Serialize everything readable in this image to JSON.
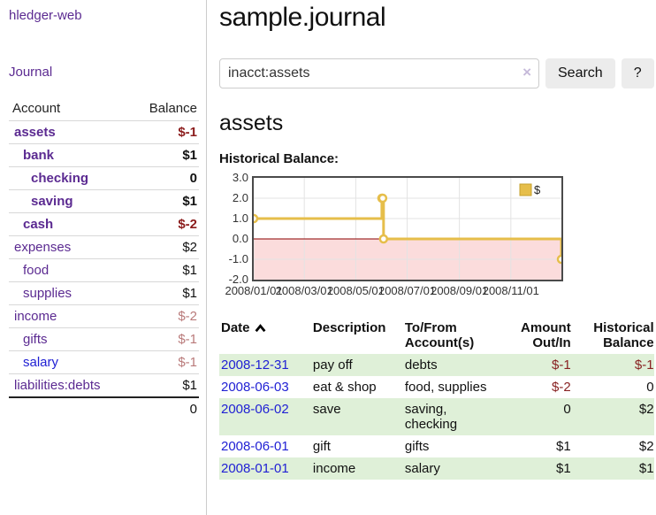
{
  "app": {
    "brand": "hledger-web",
    "nav_journal": "Journal"
  },
  "colors": {
    "accent_purple": "#5b2a91",
    "link_blue": "#2121d4",
    "negative_red": "#882222",
    "negative_soft": "#b97a7a",
    "row_green": "#dff0d8",
    "chart_line_gold": "#e6be4a",
    "chart_negative_fill": "#fbdcdc",
    "zero_line_red": "#8b0000"
  },
  "sidebar": {
    "headers": {
      "account": "Account",
      "balance": "Balance"
    },
    "accounts": [
      {
        "name": "assets",
        "balance": "$-1"
      },
      {
        "name": "bank",
        "balance": "$1"
      },
      {
        "name": "checking",
        "balance": "0"
      },
      {
        "name": "saving",
        "balance": "$1"
      },
      {
        "name": "cash",
        "balance": "$-2"
      },
      {
        "name": "expenses",
        "balance": "$2"
      },
      {
        "name": "food",
        "balance": "$1"
      },
      {
        "name": "supplies",
        "balance": "$1"
      },
      {
        "name": "income",
        "balance": "$-2"
      },
      {
        "name": "gifts",
        "balance": "$-1"
      },
      {
        "name": "salary",
        "balance": "$-1"
      },
      {
        "name": "liabilities:debts",
        "balance": "$1"
      }
    ],
    "total": "0"
  },
  "main": {
    "title": "sample.journal",
    "search": {
      "value": "inacct:assets",
      "clear_icon": "×",
      "button_label": "Search",
      "help_label": "?"
    },
    "account_heading": "assets",
    "chart_label": "Historical Balance:"
  },
  "chart_data": {
    "type": "line",
    "style": "step-after",
    "title": "Historical Balance",
    "xlabel": "",
    "ylabel": "",
    "xlim_days": [
      0,
      365
    ],
    "ylim": [
      -2,
      3
    ],
    "grid": true,
    "legend": {
      "label": "$",
      "position": "top-right"
    },
    "series": [
      {
        "name": "$",
        "points": [
          {
            "date": "2008-01-01",
            "day": 0,
            "value": 1
          },
          {
            "date": "2008-06-01",
            "day": 152,
            "value": 2
          },
          {
            "date": "2008-06-02",
            "day": 153,
            "value": 2
          },
          {
            "date": "2008-06-03",
            "day": 154,
            "value": 0
          },
          {
            "date": "2008-12-31",
            "day": 365,
            "value": -1
          }
        ]
      }
    ],
    "x_ticks": [
      {
        "label": "2008/01/01",
        "day": 0
      },
      {
        "label": "2008/03/01",
        "day": 60
      },
      {
        "label": "2008/05/01",
        "day": 121
      },
      {
        "label": "2008/07/01",
        "day": 182
      },
      {
        "label": "2008/09/01",
        "day": 244
      },
      {
        "label": "2008/11/01",
        "day": 305
      }
    ],
    "y_ticks": [
      {
        "label": "3.0",
        "value": 3
      },
      {
        "label": "2.0",
        "value": 2
      },
      {
        "label": "1.0",
        "value": 1
      },
      {
        "label": "0.0",
        "value": 0
      },
      {
        "label": "-1.0",
        "value": -1
      },
      {
        "label": "-2.0",
        "value": -2
      }
    ]
  },
  "register": {
    "headers": [
      "Date",
      "Description",
      "To/From Account(s)",
      "Amount Out/In",
      "Historical Balance"
    ],
    "rows": [
      {
        "date": "2008-12-31",
        "description": "pay off",
        "accounts": "debts",
        "amount": "$-1",
        "balance": "$-1"
      },
      {
        "date": "2008-06-03",
        "description": "eat & shop",
        "accounts": "food, supplies",
        "amount": "$-2",
        "balance": "0"
      },
      {
        "date": "2008-06-02",
        "description": "save",
        "accounts": "saving,\nchecking",
        "amount": "0",
        "balance": "$2"
      },
      {
        "date": "2008-06-01",
        "description": "gift",
        "accounts": "gifts",
        "amount": "$1",
        "balance": "$2"
      },
      {
        "date": "2008-01-01",
        "description": "income",
        "accounts": "salary",
        "amount": "$1",
        "balance": "$1"
      }
    ]
  }
}
